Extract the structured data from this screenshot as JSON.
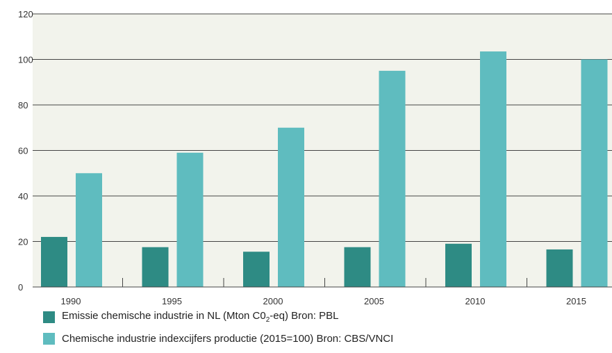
{
  "colors": {
    "series1": "#2e8b84",
    "series2": "#5fbcbf",
    "plot_background": "#f2f3ec",
    "axis": "#444444"
  },
  "legend": {
    "item1": {
      "pre": "Emissie chemische industrie in NL (Mton C0",
      "sub": "2",
      "post": "-eq) Bron: PBL"
    },
    "item2": {
      "text": "Chemische industrie indexcijfers productie (2015=100) Bron: CBS/VNCI"
    }
  },
  "chart_data": {
    "type": "bar",
    "categories": [
      "1990",
      "1995",
      "2000",
      "2005",
      "2010",
      "2015"
    ],
    "series": [
      {
        "name": "Emissie chemische industrie in NL (Mton C02-eq) Bron: PBL",
        "values": [
          22,
          17.5,
          15.5,
          17.5,
          19,
          16.5
        ]
      },
      {
        "name": "Chemische industrie indexcijfers productie (2015=100) Bron: CBS/VNCI",
        "values": [
          50,
          59,
          70,
          95,
          103.5,
          100
        ]
      }
    ],
    "ylim": [
      0,
      120
    ],
    "yticks": [
      0,
      20,
      40,
      60,
      80,
      100,
      120
    ],
    "title": "",
    "xlabel": "",
    "ylabel": "",
    "grid": true,
    "legend_position": "bottom-left"
  }
}
